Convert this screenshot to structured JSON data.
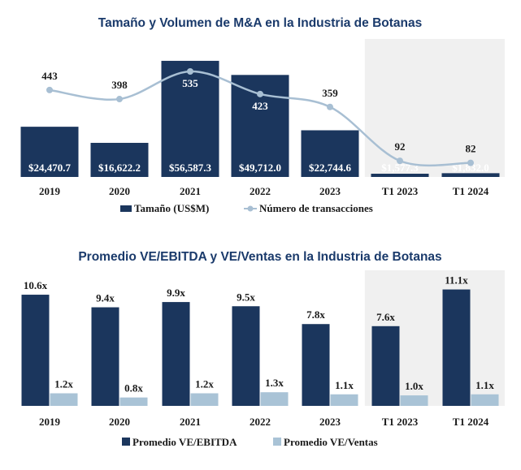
{
  "colors": {
    "navy": "#1b365d",
    "line": "#a8bfd3",
    "light_bar": "#a9c3d6",
    "shade": "#f0f0f0",
    "title": "#1a3a6b"
  },
  "chart_data": [
    {
      "type": "bar",
      "title": "Tamaño y Volumen de M&A en la Industria de Botanas",
      "categories": [
        "2019",
        "2020",
        "2021",
        "2022",
        "2023",
        "T1 2023",
        "T1 2024"
      ],
      "highlighted_categories": [
        "T1 2023",
        "T1 2024"
      ],
      "series": [
        {
          "name": "Tamaño (US$M)",
          "type": "bar",
          "values": [
            24470.7,
            16622.2,
            56587.3,
            49712.0,
            22744.6,
            1577.3,
            1832.0
          ],
          "labels": [
            "$24,470.7",
            "$16,622.2",
            "$56,587.3",
            "$49,712.0",
            "$22,744.6",
            "$1,577.3",
            "$1,832.0"
          ]
        },
        {
          "name": "Número de transacciones",
          "type": "line",
          "values": [
            443,
            398,
            535,
            423,
            359,
            92,
            82
          ],
          "labels": [
            "443",
            "398",
            "535",
            "423",
            "359",
            "92",
            "82"
          ]
        }
      ],
      "ylim_bar": [
        0,
        60000
      ],
      "ylim_line": [
        0,
        700
      ],
      "legend_position": "bottom"
    },
    {
      "type": "bar",
      "title": "Promedio VE/EBITDA y VE/Ventas en la Industria de Botanas",
      "categories": [
        "2019",
        "2020",
        "2021",
        "2022",
        "2023",
        "T1 2023",
        "T1 2024"
      ],
      "highlighted_categories": [
        "T1 2023",
        "T1 2024"
      ],
      "series": [
        {
          "name": "Promedio VE/EBITDA",
          "values": [
            10.6,
            9.4,
            9.9,
            9.5,
            7.8,
            7.6,
            11.1
          ],
          "labels": [
            "10.6x",
            "9.4x",
            "9.9x",
            "9.5x",
            "7.8x",
            "7.6x",
            "11.1x"
          ]
        },
        {
          "name": "Promedio VE/Ventas",
          "values": [
            1.2,
            0.8,
            1.2,
            1.3,
            1.1,
            1.0,
            1.1
          ],
          "labels": [
            "1.2x",
            "0.8x",
            "1.2x",
            "1.3x",
            "1.1x",
            "1.0x",
            "1.1x"
          ]
        }
      ],
      "ylim": [
        0,
        11.3
      ],
      "legend_position": "bottom"
    }
  ]
}
